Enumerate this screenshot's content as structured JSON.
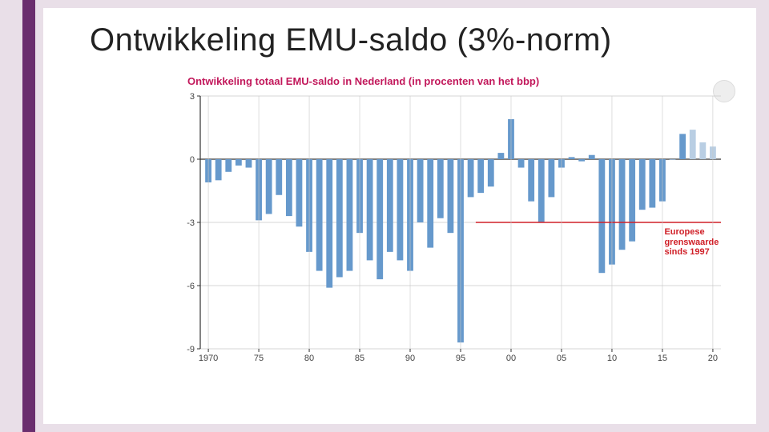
{
  "slide": {
    "title": "Ontwikkeling EMU-saldo (3%-norm)",
    "background_color": "#ffffff",
    "outer_background": "#e9dfe8",
    "accent_color": "#6a2e6e"
  },
  "chart": {
    "type": "bar",
    "subtitle": "Ontwikkeling totaal EMU-saldo in Nederland (in procenten van het bbp)",
    "subtitle_color": "#c2185b",
    "subtitle_fontsize": 13,
    "background_color": "#ffffff",
    "axis_color": "#333333",
    "grid_color": "#c8c8c8",
    "bar_color": "#6699cc",
    "forecast_bar_color": "#b9cee3",
    "bar_width": 0.62,
    "ylim": [
      -9,
      3
    ],
    "ytick_step": 3,
    "yticks": [
      -9,
      -6,
      -3,
      0,
      3
    ],
    "xlim": [
      1969.2,
      2020.8
    ],
    "xticks": [
      1970,
      1975,
      1980,
      1985,
      1990,
      1995,
      2000,
      2005,
      2010,
      2015,
      2020
    ],
    "xtick_labels": [
      "1970",
      "75",
      "80",
      "85",
      "90",
      "95",
      "00",
      "05",
      "10",
      "15",
      "20"
    ],
    "years": [
      1970,
      1971,
      1972,
      1973,
      1974,
      1975,
      1976,
      1977,
      1978,
      1979,
      1980,
      1981,
      1982,
      1983,
      1984,
      1985,
      1986,
      1987,
      1988,
      1989,
      1990,
      1991,
      1992,
      1993,
      1994,
      1995,
      1996,
      1997,
      1998,
      1999,
      2000,
      2001,
      2002,
      2003,
      2004,
      2005,
      2006,
      2007,
      2008,
      2009,
      2010,
      2011,
      2012,
      2013,
      2014,
      2015,
      2016,
      2017,
      2018,
      2019,
      2020
    ],
    "values": [
      -1.1,
      -1.0,
      -0.6,
      -0.3,
      -0.4,
      -2.9,
      -2.6,
      -1.7,
      -2.7,
      -3.2,
      -4.4,
      -5.3,
      -6.1,
      -5.6,
      -5.3,
      -3.5,
      -4.8,
      -5.7,
      -4.4,
      -4.8,
      -5.3,
      -3.0,
      -4.2,
      -2.8,
      -3.5,
      -8.7,
      -1.8,
      -1.6,
      -1.3,
      0.3,
      1.9,
      -0.4,
      -2.0,
      -3.0,
      -1.8,
      -0.4,
      0.1,
      -0.1,
      0.2,
      -5.4,
      -5.0,
      -4.3,
      -3.9,
      -2.4,
      -2.3,
      -2.0,
      0.0,
      1.2,
      1.4,
      0.8,
      0.6
    ],
    "forecast_start_year": 2018,
    "threshold": {
      "value": -3,
      "start_x": 1997,
      "color": "#d02028",
      "line_width": 1.4,
      "label_line1": "Europese",
      "label_line2": "grenswaarde",
      "label_line3": "sinds 1997"
    },
    "tick_fontsize": 11,
    "tick_color": "#444444"
  }
}
